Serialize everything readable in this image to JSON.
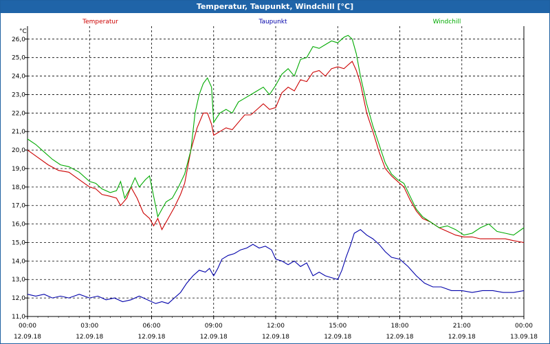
{
  "window": {
    "title": "Temperatur, Taupunkt, Windchill [°C]"
  },
  "chart_data": {
    "type": "line",
    "title": "Temperatur, Taupunkt, Windchill [°C]",
    "ylabel": "°C",
    "xlabel": "",
    "grid": true,
    "legend_placement": "top",
    "ylim": [
      11.0,
      26.7
    ],
    "xlim": [
      0,
      24
    ],
    "yticks": [
      "11,0",
      "12,0",
      "13,0",
      "14,0",
      "15,0",
      "16,0",
      "17,0",
      "18,0",
      "19,0",
      "20,0",
      "21,0",
      "22,0",
      "23,0",
      "24,0",
      "25,0",
      "26,0"
    ],
    "xticks": [
      {
        "time": "00:00",
        "date": "12.09.18"
      },
      {
        "time": "03:00",
        "date": "12.09.18"
      },
      {
        "time": "06:00",
        "date": "12.09.18"
      },
      {
        "time": "09:00",
        "date": "12.09.18"
      },
      {
        "time": "12:00",
        "date": "12.09.18"
      },
      {
        "time": "15:00",
        "date": "12.09.18"
      },
      {
        "time": "18:00",
        "date": "12.09.18"
      },
      {
        "time": "21:00",
        "date": "12.09.18"
      },
      {
        "time": "00:00",
        "date": "13.09.18"
      }
    ],
    "series": [
      {
        "name": "Temperatur",
        "color": "#cc0000",
        "points": [
          [
            0.0,
            20.0
          ],
          [
            0.5,
            19.6
          ],
          [
            1.0,
            19.2
          ],
          [
            1.5,
            18.9
          ],
          [
            2.0,
            18.8
          ],
          [
            2.5,
            18.4
          ],
          [
            3.0,
            18.0
          ],
          [
            3.3,
            17.9
          ],
          [
            3.6,
            17.6
          ],
          [
            4.0,
            17.5
          ],
          [
            4.3,
            17.4
          ],
          [
            4.5,
            17.0
          ],
          [
            4.8,
            17.4
          ],
          [
            5.0,
            18.0
          ],
          [
            5.3,
            17.4
          ],
          [
            5.6,
            16.6
          ],
          [
            5.9,
            16.3
          ],
          [
            6.1,
            15.9
          ],
          [
            6.3,
            16.3
          ],
          [
            6.5,
            15.7
          ],
          [
            6.8,
            16.3
          ],
          [
            7.1,
            16.9
          ],
          [
            7.4,
            17.6
          ],
          [
            7.6,
            18.2
          ],
          [
            7.9,
            20.0
          ],
          [
            8.2,
            21.2
          ],
          [
            8.5,
            22.0
          ],
          [
            8.7,
            22.0
          ],
          [
            8.9,
            21.4
          ],
          [
            9.0,
            20.8
          ],
          [
            9.3,
            21.0
          ],
          [
            9.6,
            21.2
          ],
          [
            9.9,
            21.1
          ],
          [
            10.2,
            21.5
          ],
          [
            10.5,
            21.9
          ],
          [
            10.8,
            21.9
          ],
          [
            11.1,
            22.2
          ],
          [
            11.4,
            22.5
          ],
          [
            11.7,
            22.2
          ],
          [
            12.0,
            22.3
          ],
          [
            12.3,
            23.1
          ],
          [
            12.6,
            23.4
          ],
          [
            12.9,
            23.2
          ],
          [
            13.2,
            23.8
          ],
          [
            13.5,
            23.7
          ],
          [
            13.8,
            24.2
          ],
          [
            14.1,
            24.3
          ],
          [
            14.4,
            24.0
          ],
          [
            14.7,
            24.4
          ],
          [
            15.0,
            24.5
          ],
          [
            15.3,
            24.4
          ],
          [
            15.5,
            24.6
          ],
          [
            15.7,
            24.8
          ],
          [
            15.9,
            24.3
          ],
          [
            16.1,
            23.6
          ],
          [
            16.4,
            22.0
          ],
          [
            16.7,
            21.0
          ],
          [
            17.0,
            19.9
          ],
          [
            17.3,
            19.0
          ],
          [
            17.6,
            18.6
          ],
          [
            17.9,
            18.3
          ],
          [
            18.2,
            18.0
          ],
          [
            18.5,
            17.3
          ],
          [
            18.8,
            16.7
          ],
          [
            19.1,
            16.3
          ],
          [
            19.5,
            16.1
          ],
          [
            19.9,
            15.8
          ],
          [
            20.3,
            15.6
          ],
          [
            20.7,
            15.4
          ],
          [
            21.1,
            15.3
          ],
          [
            21.5,
            15.3
          ],
          [
            21.9,
            15.2
          ],
          [
            22.3,
            15.2
          ],
          [
            22.7,
            15.2
          ],
          [
            23.1,
            15.2
          ],
          [
            23.5,
            15.1
          ],
          [
            24.0,
            15.0
          ]
        ]
      },
      {
        "name": "Taupunkt",
        "color": "#0000aa",
        "points": [
          [
            0.0,
            12.2
          ],
          [
            0.4,
            12.1
          ],
          [
            0.8,
            12.2
          ],
          [
            1.2,
            12.0
          ],
          [
            1.6,
            12.1
          ],
          [
            2.0,
            12.0
          ],
          [
            2.5,
            12.2
          ],
          [
            3.0,
            12.0
          ],
          [
            3.4,
            12.1
          ],
          [
            3.8,
            11.9
          ],
          [
            4.2,
            12.0
          ],
          [
            4.6,
            11.8
          ],
          [
            5.0,
            11.9
          ],
          [
            5.4,
            12.1
          ],
          [
            5.8,
            11.9
          ],
          [
            6.2,
            11.7
          ],
          [
            6.5,
            11.8
          ],
          [
            6.8,
            11.7
          ],
          [
            7.1,
            12.0
          ],
          [
            7.4,
            12.3
          ],
          [
            7.7,
            12.8
          ],
          [
            8.0,
            13.2
          ],
          [
            8.3,
            13.5
          ],
          [
            8.6,
            13.4
          ],
          [
            8.8,
            13.6
          ],
          [
            9.0,
            13.2
          ],
          [
            9.2,
            13.6
          ],
          [
            9.4,
            14.1
          ],
          [
            9.7,
            14.3
          ],
          [
            10.0,
            14.4
          ],
          [
            10.3,
            14.6
          ],
          [
            10.6,
            14.7
          ],
          [
            10.9,
            14.9
          ],
          [
            11.2,
            14.7
          ],
          [
            11.5,
            14.8
          ],
          [
            11.8,
            14.6
          ],
          [
            12.0,
            14.1
          ],
          [
            12.3,
            14.0
          ],
          [
            12.6,
            13.8
          ],
          [
            12.9,
            14.0
          ],
          [
            13.2,
            13.7
          ],
          [
            13.5,
            13.9
          ],
          [
            13.8,
            13.2
          ],
          [
            14.1,
            13.4
          ],
          [
            14.4,
            13.2
          ],
          [
            14.7,
            13.1
          ],
          [
            15.0,
            13.0
          ],
          [
            15.2,
            13.5
          ],
          [
            15.4,
            14.2
          ],
          [
            15.6,
            14.8
          ],
          [
            15.8,
            15.5
          ],
          [
            16.1,
            15.7
          ],
          [
            16.4,
            15.4
          ],
          [
            16.7,
            15.2
          ],
          [
            17.0,
            14.9
          ],
          [
            17.3,
            14.5
          ],
          [
            17.6,
            14.2
          ],
          [
            18.0,
            14.1
          ],
          [
            18.4,
            13.7
          ],
          [
            18.8,
            13.2
          ],
          [
            19.2,
            12.8
          ],
          [
            19.6,
            12.6
          ],
          [
            20.0,
            12.6
          ],
          [
            20.5,
            12.4
          ],
          [
            21.0,
            12.4
          ],
          [
            21.5,
            12.3
          ],
          [
            22.0,
            12.4
          ],
          [
            22.5,
            12.4
          ],
          [
            23.0,
            12.3
          ],
          [
            23.5,
            12.3
          ],
          [
            24.0,
            12.4
          ]
        ]
      },
      {
        "name": "Windchill",
        "color": "#00aa00",
        "points": [
          [
            0.0,
            20.6
          ],
          [
            0.4,
            20.3
          ],
          [
            0.8,
            19.9
          ],
          [
            1.2,
            19.5
          ],
          [
            1.6,
            19.2
          ],
          [
            2.0,
            19.1
          ],
          [
            2.5,
            18.8
          ],
          [
            3.0,
            18.3
          ],
          [
            3.3,
            18.2
          ],
          [
            3.6,
            17.9
          ],
          [
            4.0,
            17.7
          ],
          [
            4.3,
            17.8
          ],
          [
            4.5,
            18.3
          ],
          [
            4.7,
            17.4
          ],
          [
            5.0,
            18.0
          ],
          [
            5.2,
            18.5
          ],
          [
            5.4,
            18.0
          ],
          [
            5.7,
            18.4
          ],
          [
            5.9,
            18.6
          ],
          [
            6.1,
            17.5
          ],
          [
            6.3,
            16.4
          ],
          [
            6.5,
            16.8
          ],
          [
            6.7,
            17.2
          ],
          [
            7.0,
            17.4
          ],
          [
            7.3,
            18.0
          ],
          [
            7.6,
            18.7
          ],
          [
            7.9,
            20.0
          ],
          [
            8.1,
            22.0
          ],
          [
            8.3,
            23.0
          ],
          [
            8.5,
            23.6
          ],
          [
            8.7,
            23.9
          ],
          [
            8.9,
            23.4
          ],
          [
            9.0,
            21.5
          ],
          [
            9.3,
            22.0
          ],
          [
            9.6,
            22.2
          ],
          [
            9.9,
            22.0
          ],
          [
            10.2,
            22.6
          ],
          [
            10.5,
            22.8
          ],
          [
            10.8,
            23.0
          ],
          [
            11.1,
            23.2
          ],
          [
            11.4,
            23.4
          ],
          [
            11.7,
            23.0
          ],
          [
            12.0,
            23.5
          ],
          [
            12.3,
            24.1
          ],
          [
            12.6,
            24.4
          ],
          [
            12.9,
            24.0
          ],
          [
            13.2,
            24.9
          ],
          [
            13.5,
            25.0
          ],
          [
            13.8,
            25.6
          ],
          [
            14.1,
            25.5
          ],
          [
            14.4,
            25.7
          ],
          [
            14.7,
            25.9
          ],
          [
            15.0,
            25.8
          ],
          [
            15.3,
            26.1
          ],
          [
            15.5,
            26.2
          ],
          [
            15.7,
            26.0
          ],
          [
            15.9,
            25.2
          ],
          [
            16.1,
            24.0
          ],
          [
            16.4,
            22.5
          ],
          [
            16.7,
            21.3
          ],
          [
            17.0,
            20.3
          ],
          [
            17.3,
            19.3
          ],
          [
            17.6,
            18.7
          ],
          [
            17.9,
            18.4
          ],
          [
            18.2,
            18.2
          ],
          [
            18.5,
            17.5
          ],
          [
            18.8,
            16.8
          ],
          [
            19.1,
            16.4
          ],
          [
            19.5,
            16.1
          ],
          [
            19.9,
            15.8
          ],
          [
            20.3,
            15.9
          ],
          [
            20.7,
            15.7
          ],
          [
            21.1,
            15.4
          ],
          [
            21.5,
            15.5
          ],
          [
            21.9,
            15.8
          ],
          [
            22.3,
            16.0
          ],
          [
            22.7,
            15.6
          ],
          [
            23.1,
            15.5
          ],
          [
            23.5,
            15.4
          ],
          [
            24.0,
            15.8
          ]
        ]
      }
    ]
  }
}
